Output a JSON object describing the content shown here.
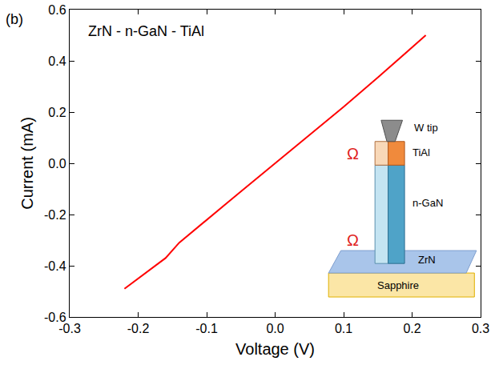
{
  "chart_data": {
    "type": "line",
    "panel_label": "(b)",
    "annotations": [
      "ZrN - n-GaN - TiAl"
    ],
    "x_label": "Voltage (V)",
    "y_label": "Current (mA)",
    "x": [
      -0.22,
      -0.2,
      -0.16,
      -0.14,
      -0.1,
      -0.05,
      0.0,
      0.05,
      0.1,
      0.15,
      0.2,
      0.22
    ],
    "values": [
      -0.49,
      -0.45,
      -0.37,
      -0.31,
      -0.22,
      -0.11,
      0.0,
      0.11,
      0.22,
      0.335,
      0.455,
      0.5
    ],
    "color": "#ff0000",
    "xlim": [
      -0.3,
      0.3
    ],
    "xticks": [
      -0.3,
      -0.2,
      -0.1,
      {
        "value": 0,
        "label": "0.0"
      },
      0.1,
      0.2,
      0.3
    ],
    "ylim": [
      -0.6,
      0.6
    ],
    "yticks": [
      -0.6,
      -0.4,
      -0.2,
      {
        "value": 0,
        "label": "0.0"
      },
      0.2,
      0.4,
      0.6
    ],
    "grid": false,
    "inset": {
      "tip": "W tip",
      "cap": "TiAl",
      "wire": "n-GaN",
      "layer": "ZrN",
      "substrate": "Sapphire",
      "contact_marks": [
        "Ω",
        "Ω"
      ]
    }
  }
}
